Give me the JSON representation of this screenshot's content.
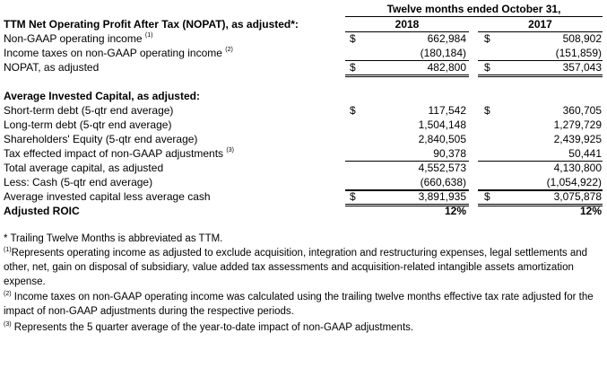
{
  "header": {
    "period": "Twelve months ended October 31,",
    "col1": "2018",
    "col2": "2017"
  },
  "sections": [
    {
      "title": "TTM Net Operating Profit After Tax (NOPAT), as adjusted*:",
      "rows": [
        {
          "label": "Non-GAAP operating income",
          "note": "(1)",
          "sign1": "$",
          "v1": "662,984",
          "sign2": "$",
          "v2": "508,902"
        },
        {
          "label": "Income taxes on non-GAAP operating income",
          "note": "(2)",
          "sign1": "",
          "v1": "(180,184)",
          "sign2": "",
          "v2": "(151,859)"
        },
        {
          "label": "NOPAT, as adjusted",
          "note": "",
          "sign1": "$",
          "v1": "482,800",
          "sign2": "$",
          "v2": "357,043"
        }
      ]
    },
    {
      "title": "Average Invested Capital, as adjusted:",
      "rows": [
        {
          "label": "Short-term debt (5-qtr end average)",
          "note": "",
          "sign1": "$",
          "v1": "117,542",
          "sign2": "$",
          "v2": "360,705"
        },
        {
          "label": "Long-term debt (5-qtr end average)",
          "note": "",
          "sign1": "",
          "v1": "1,504,148",
          "sign2": "",
          "v2": "1,279,729"
        },
        {
          "label": "Shareholders' Equity (5-qtr end average)",
          "note": "",
          "sign1": "",
          "v1": "2,840,505",
          "sign2": "",
          "v2": "2,439,925"
        },
        {
          "label": "Tax effected impact of non-GAAP adjustments",
          "note": "(3)",
          "sign1": "",
          "v1": "90,378",
          "sign2": "",
          "v2": "50,441"
        },
        {
          "label": "Total average capital, as adjusted",
          "note": "",
          "sign1": "",
          "v1": "4,552,573",
          "sign2": "",
          "v2": "4,130,800"
        },
        {
          "label": "Less: Cash (5-qtr end average)",
          "note": "",
          "sign1": "",
          "v1": "(660,638)",
          "sign2": "",
          "v2": "(1,054,922)"
        },
        {
          "label": "Average invested capital less average cash",
          "note": "",
          "sign1": "$",
          "v1": "3,891,935",
          "sign2": "$",
          "v2": "3,075,878"
        },
        {
          "label": "Adjusted ROIC",
          "note": "",
          "sign1": "",
          "v1": "12%",
          "sign2": "",
          "v2": "12%"
        }
      ]
    }
  ],
  "footnotes": [
    {
      "mark": "",
      "text": "* Trailing Twelve Months is abbreviated as TTM."
    },
    {
      "mark": "(1)",
      "text": "Represents operating income as adjusted to exclude acquisition, integration and restructuring expenses, legal settlements and other, net, gain on disposal of subsidiary, value added tax assessments and acquisition-related intangible assets amortization expense."
    },
    {
      "mark": "(2)",
      "text": " Income taxes on non-GAAP operating income was calculated using the trailing twelve months effective tax rate adjusted for the impact of non-GAAP adjustments during the respective periods."
    },
    {
      "mark": "(3)",
      "text": " Represents the 5 quarter average of the year-to-date impact of non-GAAP adjustments."
    }
  ]
}
